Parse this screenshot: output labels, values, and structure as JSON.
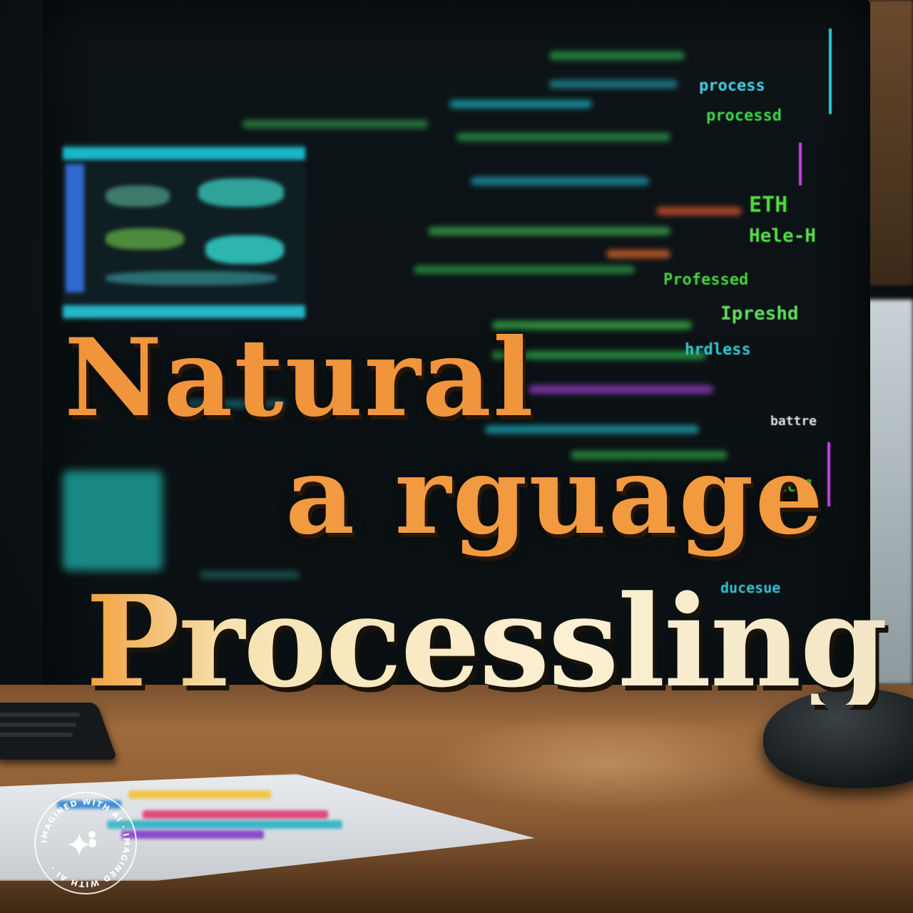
{
  "title": {
    "line1": "Natural",
    "line2": "a rguage",
    "line3": "Processling"
  },
  "screen_code": [
    "process",
    "processd",
    "ETH",
    "Hele-H",
    "Professed",
    "Ipreshd",
    "hrdless",
    "battre",
    "Hcol",
    "ducesue"
  ],
  "watermark": {
    "text": "IMAGINED WITH AI · IMAGINED WITH AI ·",
    "icon": "sparkle-icon"
  },
  "colors": {
    "title_orange": "#f0953c",
    "title_cream": "#fbf0d2",
    "code_green": "#4ddc3a",
    "code_cyan": "#19b6c8",
    "code_magenta": "#c845e0",
    "desk": "#a06c3e"
  }
}
